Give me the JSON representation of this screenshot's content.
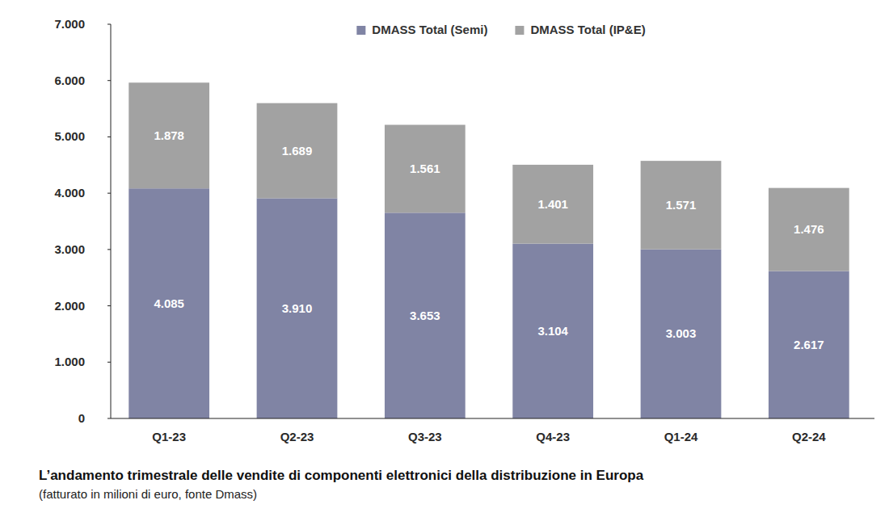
{
  "chart_data": {
    "type": "bar",
    "title": "L’andamento trimestrale delle vendite di componenti elettronici della distribuzione in Europa",
    "subtitle": "(fatturato in milioni di euro, fonte Dmass)",
    "categories": [
      "Q1-23",
      "Q2-23",
      "Q3-23",
      "Q4-23",
      "Q1-24",
      "Q2-24"
    ],
    "series": [
      {
        "name": "DMASS Total (Semi)",
        "color": "#8084a4",
        "values": [
          4085,
          3910,
          3653,
          3104,
          3003,
          2617
        ],
        "value_labels": [
          "4.085",
          "3.910",
          "3.653",
          "3.104",
          "3.003",
          "2.617"
        ]
      },
      {
        "name": "DMASS Total (IP&E)",
        "color": "#a2a2a2",
        "values": [
          1878,
          1689,
          1561,
          1401,
          1571,
          1476
        ],
        "value_labels": [
          "1.878",
          "1.689",
          "1.561",
          "1.401",
          "1.571",
          "1.476"
        ]
      }
    ],
    "ylim": [
      0,
      7000
    ],
    "yticks": [
      0,
      {
        "value": 1000,
        "label": "1.000"
      },
      {
        "value": 2000,
        "label": "2.000"
      },
      {
        "value": 3000,
        "label": "3.000"
      },
      {
        "value": 4000,
        "label": "4.000"
      },
      {
        "value": 5000,
        "label": "5.000"
      },
      {
        "value": 6000,
        "label": "6.000"
      },
      {
        "value": 7000,
        "label": "7.000"
      }
    ],
    "stacked": true,
    "data_labels": true,
    "legend": "top",
    "grid": false
  }
}
